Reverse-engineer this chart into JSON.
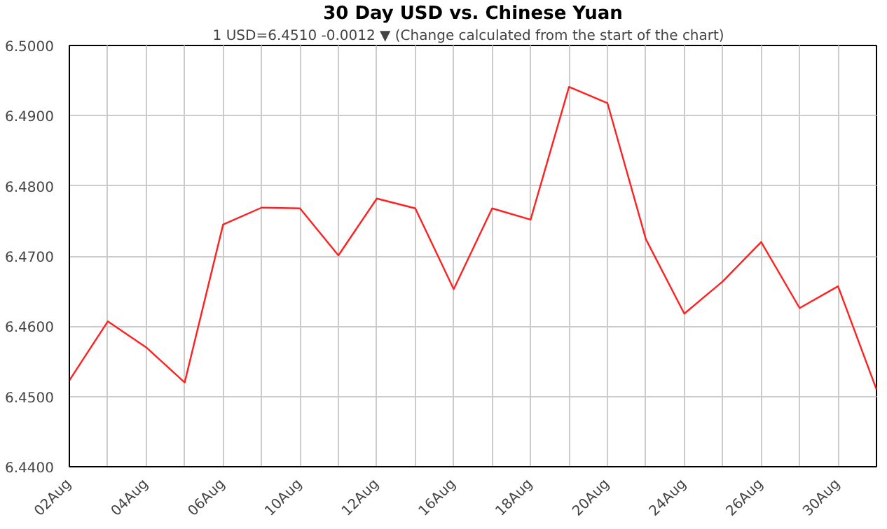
{
  "chart_data": {
    "type": "line",
    "title": "30 Day USD vs. Chinese Yuan",
    "subtitle": "1 USD=6.4510  -0.0012 ▼  (Change calculated from the start of the chart)",
    "categories": [
      "02Aug",
      null,
      "04Aug",
      null,
      "06Aug",
      null,
      "10Aug",
      null,
      "12Aug",
      null,
      "16Aug",
      null,
      "18Aug",
      null,
      "20Aug",
      null,
      "24Aug",
      null,
      "26Aug",
      null,
      "30Aug",
      null
    ],
    "series": [
      {
        "color": "#ff2020",
        "values": [
          6.4523,
          6.4607,
          6.457,
          6.452,
          6.4745,
          6.4769,
          6.4768,
          6.4701,
          6.4782,
          6.4768,
          6.4653,
          6.4768,
          6.4752,
          6.4941,
          6.4918,
          6.4724,
          6.4618,
          6.4664,
          6.472,
          6.4626,
          6.4657,
          6.451
        ]
      }
    ],
    "ylim": [
      6.44,
      6.5
    ],
    "yticks": [
      {
        "value": 6.44,
        "label": "6.4400"
      },
      {
        "value": 6.45,
        "label": "6.4500"
      },
      {
        "value": 6.46,
        "label": "6.4600"
      },
      {
        "value": 6.47,
        "label": "6.4700"
      },
      {
        "value": 6.48,
        "label": "6.4800"
      },
      {
        "value": 6.49,
        "label": "6.4900"
      },
      {
        "value": 6.5,
        "label": "6.5000"
      }
    ],
    "grid": true,
    "marker": "none",
    "line_style": "solid"
  }
}
